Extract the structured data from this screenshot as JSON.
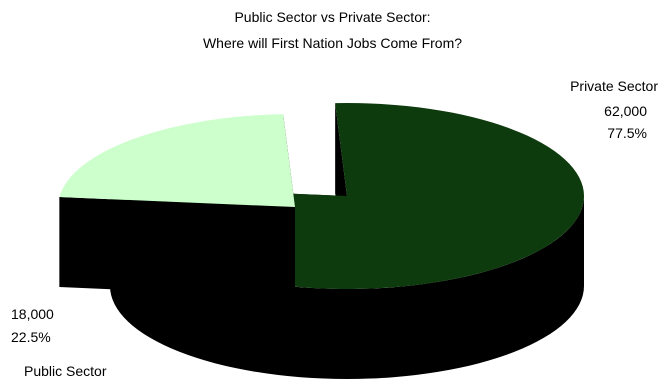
{
  "chart_data": {
    "type": "pie",
    "title": "Public Sector vs Private Sector:",
    "subtitle": "Where will First Nation Jobs Come From?",
    "three_d": true,
    "exploded": "Public Sector",
    "slices": [
      {
        "name": "Private Sector",
        "value": 62000,
        "value_label": "62,000",
        "percent": 77.5,
        "percent_label": "77.5%",
        "color": "#0d3b0d"
      },
      {
        "name": "Public Sector",
        "value": 18000,
        "value_label": "18,000",
        "percent": 22.5,
        "percent_label": "22.5%",
        "color": "#ccffcc"
      }
    ],
    "side_color": "#000000"
  }
}
